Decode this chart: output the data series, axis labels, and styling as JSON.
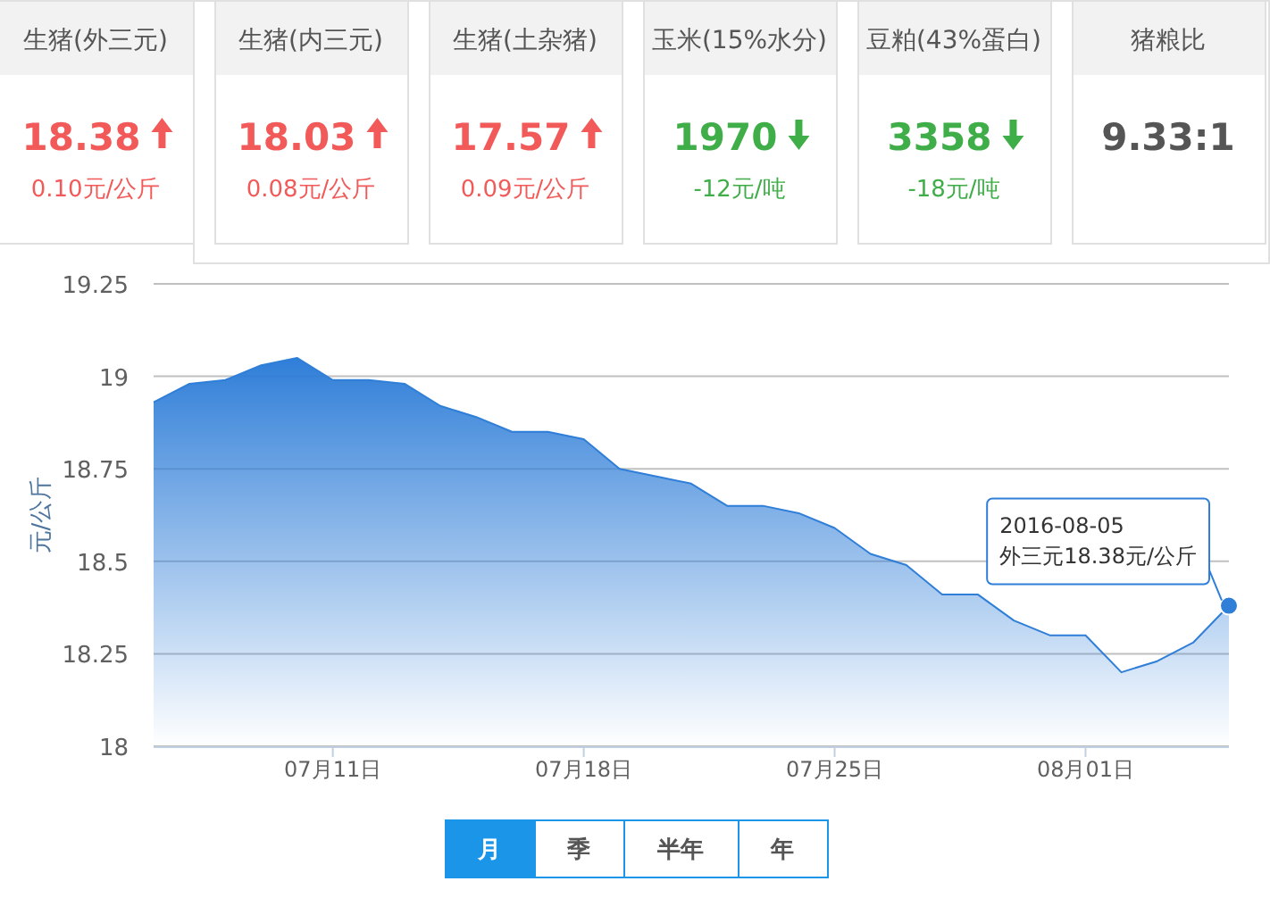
{
  "chart_data": [
    {
      "type": "other",
      "categories": [
        "生猪(外三元)",
        "生猪(内三元)",
        "生猪(土杂猪)",
        "玉米(15%水分)",
        "豆粕(43%蛋白)",
        "猪粮比"
      ],
      "series": [
        {
          "values": [
            18.38,
            18.03,
            17.57,
            1970,
            3358,
            null
          ],
          "value_labels": [
            "18.38",
            "18.03",
            "17.57",
            "1970",
            "3358",
            "9.33:1"
          ]
        },
        {
          "values": [
            0.1,
            0.08,
            0.09,
            -12,
            -18,
            null
          ],
          "value_labels": [
            "0.10元/公斤",
            "0.08元/公斤",
            "0.09元/公斤",
            "-12元/吨",
            "-18元/吨",
            null
          ]
        }
      ]
    },
    {
      "type": "area",
      "ylabel": "元/公斤",
      "x": [
        "2016-07-06",
        "2016-07-07",
        "2016-07-08",
        "2016-07-09",
        "2016-07-10",
        "2016-07-11",
        "2016-07-12",
        "2016-07-13",
        "2016-07-14",
        "2016-07-15",
        "2016-07-16",
        "2016-07-17",
        "2016-07-18",
        "2016-07-19",
        "2016-07-20",
        "2016-07-21",
        "2016-07-22",
        "2016-07-23",
        "2016-07-24",
        "2016-07-25",
        "2016-07-26",
        "2016-07-27",
        "2016-07-28",
        "2016-07-29",
        "2016-07-30",
        "2016-07-31",
        "2016-08-01",
        "2016-08-02",
        "2016-08-03",
        "2016-08-04",
        "2016-08-05"
      ],
      "series": [
        {
          "color": "#2f7ed8",
          "values": [
            18.93,
            18.98,
            18.99,
            19.03,
            19.05,
            18.99,
            18.99,
            18.98,
            18.92,
            18.89,
            18.85,
            18.85,
            18.83,
            18.75,
            18.73,
            18.71,
            18.65,
            18.65,
            18.63,
            18.59,
            18.52,
            18.49,
            18.41,
            18.41,
            18.34,
            18.3,
            18.3,
            18.2,
            18.23,
            18.28,
            18.38
          ]
        }
      ],
      "xlim": [
        "2016-07-06",
        "2016-08-05"
      ],
      "xticks": [
        {
          "value": "2016-07-11",
          "label": "07月11日"
        },
        {
          "value": "2016-07-18",
          "label": "07月18日"
        },
        {
          "value": "2016-07-25",
          "label": "07月25日"
        },
        {
          "value": "2016-08-01",
          "label": "08月01日"
        }
      ],
      "ylim": [
        18,
        19.25
      ],
      "yticks": [
        {
          "value": 18,
          "label": "18"
        },
        {
          "value": 18.25,
          "label": "18.25"
        },
        {
          "value": 18.5,
          "label": "18.5"
        },
        {
          "value": 18.75,
          "label": "18.75"
        },
        {
          "value": 19,
          "label": "19"
        },
        {
          "value": 19.25,
          "label": "19.25"
        }
      ],
      "grid": "y",
      "annotations": [
        {
          "text": "2016-08-05\n外三元18.38元/公斤",
          "x": "2016-08-05",
          "y": 18.38
        }
      ]
    },
    {
      "type": "other",
      "categories": [
        "月",
        "季",
        "半年",
        "年"
      ]
    }
  ]
}
